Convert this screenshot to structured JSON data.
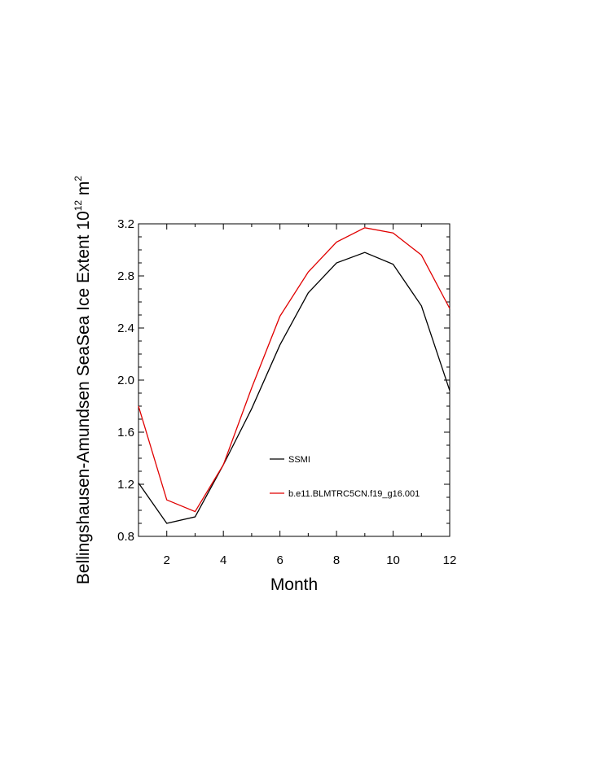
{
  "chart_data": {
    "type": "line",
    "xlabel": "Month",
    "ylabel": {
      "text": "Bellingshausen-Amundsen SeaSea Ice Extent 10",
      "exponent1": "12",
      "unit": " m",
      "exponent2": "2"
    },
    "xlim": [
      1,
      12
    ],
    "ylim": [
      0.8,
      3.2
    ],
    "x_ticks": [
      2,
      4,
      6,
      8,
      10,
      12
    ],
    "x_tick_labels": [
      "2",
      "4",
      "6",
      "8",
      "10",
      "12"
    ],
    "y_ticks": [
      0.8,
      1.2,
      1.6,
      2.0,
      2.4,
      2.8,
      3.2
    ],
    "y_tick_labels": [
      "0.8",
      "1.2",
      "1.6",
      "2.0",
      "2.4",
      "2.8",
      "3.2"
    ],
    "x": [
      1,
      2,
      3,
      4,
      5,
      6,
      7,
      8,
      9,
      10,
      11,
      12
    ],
    "series": [
      {
        "name": "SSMI",
        "color": "#000000",
        "values": [
          1.21,
          0.9,
          0.95,
          1.35,
          1.78,
          2.27,
          2.67,
          2.9,
          2.98,
          2.89,
          2.57,
          1.92
        ]
      },
      {
        "name": "b.e11.BLMTRC5CN.f19_g16.001",
        "color": "#e00000",
        "values": [
          1.8,
          1.08,
          0.99,
          1.35,
          1.94,
          2.49,
          2.83,
          3.06,
          3.17,
          3.13,
          2.96,
          2.55
        ]
      }
    ],
    "legend_position": "center-right"
  }
}
